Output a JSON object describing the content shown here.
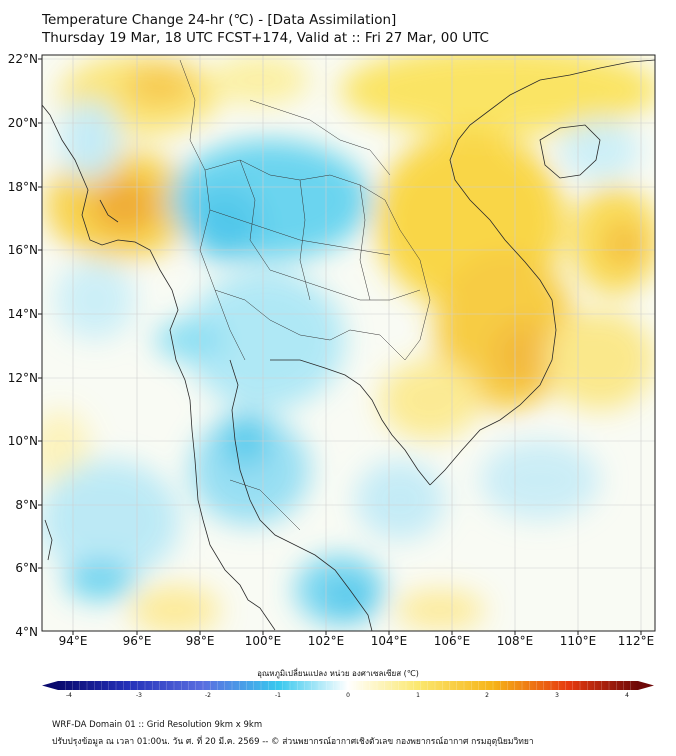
{
  "title": {
    "line1": "Temperature Change 24-hr (℃) - [Data Assimilation]",
    "line2": "Thursday 19 Mar, 18 UTC FCST+174, Valid at :: Fri 27 Mar, 00 UTC"
  },
  "lat_labels": [
    "22°N",
    "20°N",
    "18°N",
    "16°N",
    "14°N",
    "12°N",
    "10°N",
    "8°N",
    "6°N",
    "4°N"
  ],
  "lon_labels": [
    "94°E",
    "96°E",
    "98°E",
    "100°E",
    "102°E",
    "104°E",
    "106°E",
    "108°E",
    "110°E",
    "112°E"
  ],
  "colorbar": {
    "title": "อุณหภูมิเปลี่ยนแปลง หน่วย องศาเซลเซียส (℃)",
    "ticks": [
      "-4",
      "-3",
      "-2",
      "-1",
      "0",
      "1",
      "2",
      "3",
      "4"
    ],
    "min": -4,
    "max": 4
  },
  "footer": {
    "line1": "WRF-DA Domain 01 :: Grid Resolution 9km x 9km",
    "line2": "ปรับปรุงข้อมูล ณ เวลา 01:00น. วัน ศ. ที่ 20 มี.ค. 2569 -- © ส่วนพยากรณ์อากาศเชิงตัวเลข กองพยากรณ์อากาศ กรมอุตุนิยมวิทยา"
  },
  "colors": {
    "warm": "#f5d21a",
    "orange": "#f0a020",
    "cool": "#40c8ec",
    "neutral": "#ffffff"
  }
}
